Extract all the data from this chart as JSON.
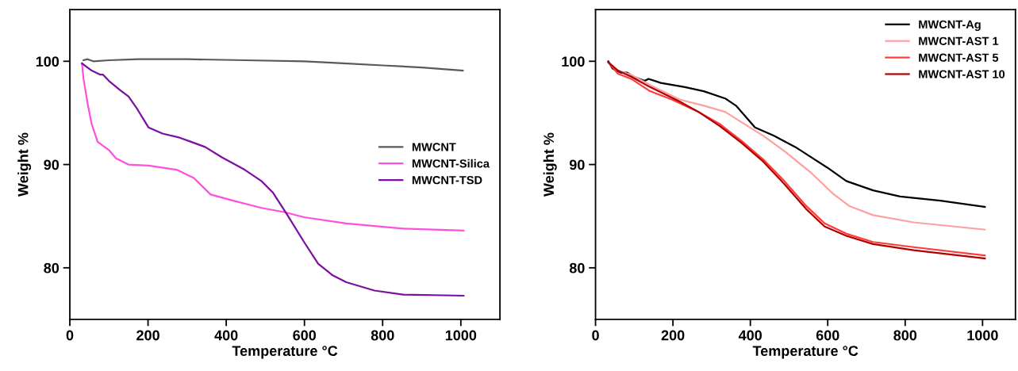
{
  "chart_data": [
    {
      "type": "line",
      "xlabel": "Temperature °C",
      "ylabel": "Weight %",
      "xlim": [
        0,
        1100
      ],
      "ylim": [
        75,
        105
      ],
      "xticks": [
        0,
        200,
        400,
        600,
        800,
        1000
      ],
      "yticks": [
        80,
        90,
        100
      ],
      "legend": "right",
      "grid": false,
      "series": [
        {
          "name": "MWCNT",
          "color": "#595959",
          "x": [
            35,
            45,
            60,
            100,
            175,
            300,
            450,
            600,
            700,
            800,
            900,
            1005
          ],
          "values": [
            100.1,
            100.2,
            100.0,
            100.1,
            100.2,
            100.2,
            100.1,
            100.0,
            99.8,
            99.6,
            99.4,
            99.1
          ]
        },
        {
          "name": "MWCNT-Silica",
          "color": "#ff4fe0",
          "x": [
            31,
            35,
            46,
            56,
            71,
            89,
            100,
            118,
            150,
            201,
            273,
            317,
            360,
            418,
            490,
            548,
            599,
            707,
            852,
            1007
          ],
          "values": [
            99.8,
            98.3,
            95.8,
            93.9,
            92.2,
            91.7,
            91.4,
            90.6,
            90.0,
            89.9,
            89.5,
            88.7,
            87.1,
            86.5,
            85.8,
            85.4,
            84.9,
            84.3,
            83.8,
            83.6
          ]
        },
        {
          "name": "MWCNT-TSD",
          "color": "#7a0fa0",
          "x": [
            31,
            56,
            78,
            85,
            100,
            129,
            150,
            172,
            201,
            237,
            281,
            310,
            346,
            389,
            447,
            490,
            519,
            555,
            599,
            635,
            671,
            707,
            779,
            852,
            1007
          ],
          "values": [
            99.8,
            99.1,
            98.7,
            98.7,
            98.1,
            97.2,
            96.6,
            95.4,
            93.6,
            93.0,
            92.6,
            92.2,
            91.7,
            90.7,
            89.5,
            88.4,
            87.3,
            85.2,
            82.5,
            80.4,
            79.3,
            78.6,
            77.8,
            77.4,
            77.3
          ]
        }
      ]
    },
    {
      "type": "line",
      "xlabel": "Temperature °C",
      "ylabel": "Weight %",
      "xlim": [
        0,
        1085
      ],
      "ylim": [
        75,
        105
      ],
      "xticks": [
        0,
        200,
        400,
        600,
        800,
        1000
      ],
      "yticks": [
        80,
        90,
        100
      ],
      "legend": "top right",
      "grid": false,
      "series": [
        {
          "name": "MWCNT-Ag",
          "color": "#000000",
          "x": [
            33,
            44,
            65,
            82,
            99,
            127,
            137,
            169,
            231,
            280,
            335,
            363,
            384,
            412,
            460,
            516,
            599,
            648,
            717,
            787,
            891,
            1006
          ],
          "values": [
            100.0,
            99.3,
            98.9,
            98.9,
            98.5,
            98.1,
            98.3,
            97.9,
            97.5,
            97.1,
            96.4,
            95.7,
            94.8,
            93.6,
            92.8,
            91.7,
            89.7,
            88.4,
            87.5,
            86.9,
            86.5,
            85.9
          ]
        },
        {
          "name": "MWCNT-AST 1",
          "color": "#ffa0a0",
          "x": [
            33,
            58,
            92,
            141,
            217,
            280,
            335,
            377,
            433,
            488,
            557,
            613,
            655,
            717,
            822,
            1006
          ],
          "values": [
            99.9,
            99.1,
            98.7,
            97.7,
            96.3,
            95.7,
            95.1,
            94.1,
            92.8,
            91.3,
            89.2,
            87.2,
            86.0,
            85.1,
            84.4,
            83.7
          ]
        },
        {
          "name": "MWCNT-AST 5",
          "color": "#ff3b3b",
          "x": [
            33,
            58,
            92,
            141,
            197,
            266,
            322,
            377,
            433,
            488,
            544,
            592,
            648,
            717,
            822,
            1006
          ],
          "values": [
            99.9,
            98.8,
            98.3,
            97.1,
            96.3,
            95.1,
            93.9,
            92.3,
            90.5,
            88.4,
            86.0,
            84.3,
            83.3,
            82.5,
            82.0,
            81.2
          ]
        },
        {
          "name": "MWCNT-AST 10",
          "color": "#b00000",
          "x": [
            33,
            58,
            92,
            141,
            217,
            266,
            322,
            377,
            433,
            488,
            544,
            592,
            648,
            717,
            822,
            1006
          ],
          "values": [
            99.9,
            99.1,
            98.5,
            97.5,
            96.1,
            95.1,
            93.7,
            92.1,
            90.3,
            88.1,
            85.7,
            84.0,
            83.1,
            82.3,
            81.7,
            80.9
          ]
        }
      ]
    }
  ]
}
